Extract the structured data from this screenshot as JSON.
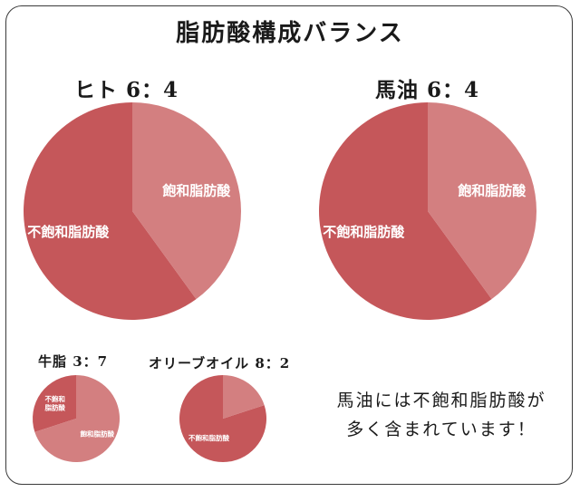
{
  "title": "脂肪酸構成バランス",
  "colors": {
    "unsaturated": "#c5575a",
    "saturated": "#d37f80",
    "slice_text": "#ffffff"
  },
  "chart_data": [
    {
      "type": "pie",
      "title": "ヒト 6：4",
      "slices": [
        {
          "label": "不飽和脂肪酸",
          "value": 6
        },
        {
          "label": "飽和脂肪酸",
          "value": 4
        }
      ]
    },
    {
      "type": "pie",
      "title": "馬油 6：4",
      "slices": [
        {
          "label": "不飽和脂肪酸",
          "value": 6
        },
        {
          "label": "飽和脂肪酸",
          "value": 4
        }
      ]
    },
    {
      "type": "pie",
      "title": "牛脂 3：7",
      "slices": [
        {
          "label": "不飽和\n脂肪酸",
          "value": 3
        },
        {
          "label": "飽和脂肪酸",
          "value": 7
        }
      ]
    },
    {
      "type": "pie",
      "title": "オリーブオイル 8：2",
      "slices": [
        {
          "label": "不飽和脂肪酸",
          "value": 8
        },
        {
          "label": "",
          "value": 2
        }
      ]
    }
  ],
  "note": {
    "line1": "馬油には不飽和脂肪酸が",
    "line2": "多く含まれています！"
  }
}
